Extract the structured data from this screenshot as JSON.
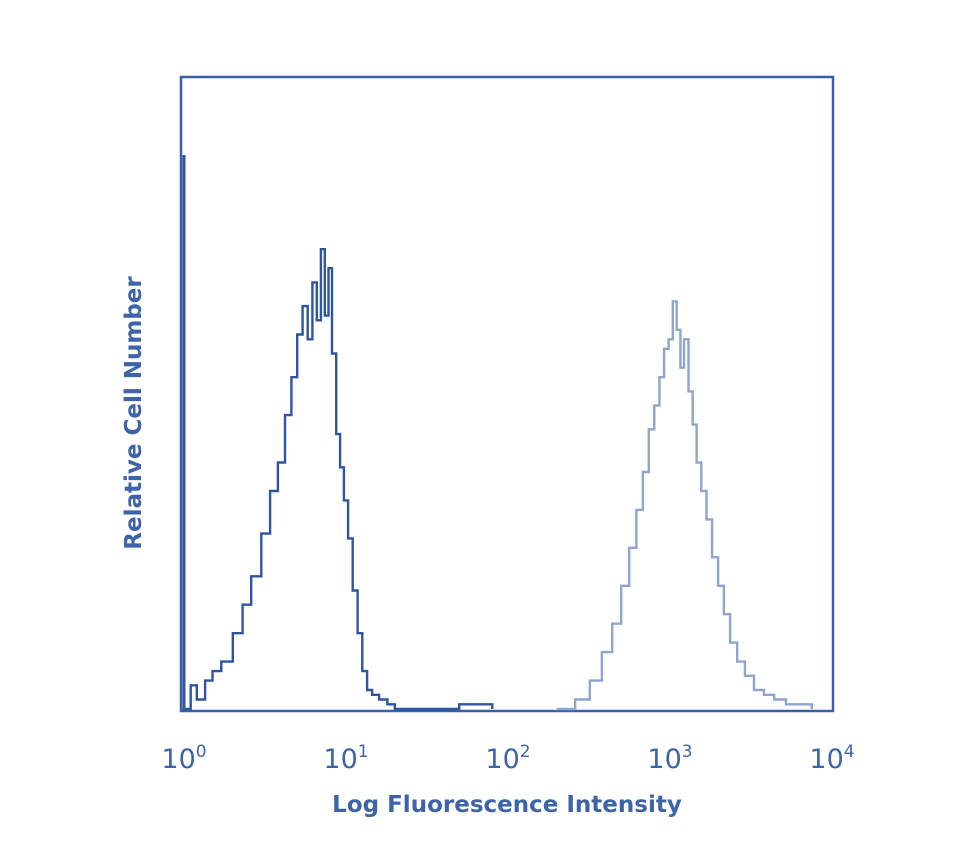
{
  "chart_data": {
    "type": "area",
    "title": "",
    "xlabel": "Log Fluorescence Intensity",
    "ylabel": "Relative Cell Number",
    "x_scale": "log",
    "xlim": [
      1,
      10000
    ],
    "ylim": [
      0,
      1
    ],
    "grid": false,
    "y_ticks_shown": false,
    "x_ticks": [
      {
        "value": 1,
        "base": "10",
        "exp": "0"
      },
      {
        "value": 10,
        "base": "10",
        "exp": "1"
      },
      {
        "value": 100,
        "base": "10",
        "exp": "2"
      },
      {
        "value": 1000,
        "base": "10",
        "exp": "3"
      },
      {
        "value": 10000,
        "base": "10",
        "exp": "4"
      }
    ],
    "colors": {
      "frame": "#3a5fa6",
      "axis_text": "#3d63a8",
      "control_series": "#2f55a0",
      "stained_series": "#8fa6cc"
    },
    "series": [
      {
        "role": "control",
        "x": [
          1.0,
          1.1,
          1.2,
          1.35,
          1.5,
          1.7,
          2.0,
          2.3,
          2.6,
          3.0,
          3.4,
          3.8,
          4.2,
          4.6,
          5.0,
          5.4,
          5.8,
          6.2,
          6.6,
          7.0,
          7.4,
          7.8,
          8.2,
          8.7,
          9.2,
          9.7,
          10.3,
          11.0,
          11.8,
          12.6,
          13.5,
          14.5,
          16.0,
          18.0,
          20.0,
          25.0,
          35.0,
          50.0,
          80.0
        ],
        "y": [
          0.0,
          0.05,
          0.02,
          0.06,
          0.08,
          0.1,
          0.16,
          0.22,
          0.28,
          0.37,
          0.46,
          0.52,
          0.62,
          0.7,
          0.79,
          0.85,
          0.78,
          0.9,
          0.82,
          0.97,
          0.83,
          0.93,
          0.75,
          0.58,
          0.51,
          0.44,
          0.36,
          0.25,
          0.16,
          0.08,
          0.04,
          0.03,
          0.02,
          0.01,
          0.0,
          0.0,
          0.0,
          0.01,
          0.0
        ]
      },
      {
        "role": "stained",
        "x": [
          200,
          260,
          320,
          380,
          440,
          500,
          560,
          620,
          680,
          740,
          800,
          860,
          920,
          980,
          1040,
          1100,
          1160,
          1220,
          1300,
          1380,
          1460,
          1560,
          1680,
          1820,
          1980,
          2150,
          2350,
          2600,
          2900,
          3300,
          3800,
          4400,
          5200,
          6200,
          7500
        ],
        "y": [
          0.0,
          0.02,
          0.06,
          0.12,
          0.18,
          0.26,
          0.34,
          0.42,
          0.5,
          0.59,
          0.64,
          0.7,
          0.76,
          0.78,
          0.86,
          0.8,
          0.72,
          0.78,
          0.67,
          0.6,
          0.52,
          0.46,
          0.4,
          0.32,
          0.26,
          0.2,
          0.14,
          0.1,
          0.07,
          0.04,
          0.03,
          0.02,
          0.01,
          0.01,
          0.0
        ]
      }
    ]
  }
}
